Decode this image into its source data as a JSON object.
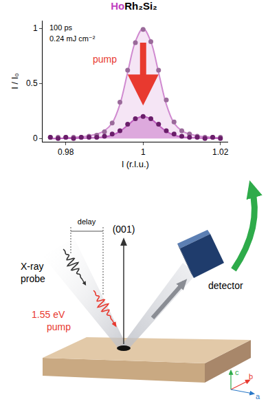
{
  "chart_data": {
    "type": "scatter",
    "title": [
      "Ho",
      "Rh₂Si₂"
    ],
    "x_label": "l (r.l.u.)",
    "y_label": "I / I₀",
    "annotations": [
      "100 ps",
      "0.24 mJ cm⁻²",
      "pump"
    ],
    "x": [
      0.976,
      0.978,
      0.98,
      0.982,
      0.984,
      0.986,
      0.988,
      0.99,
      0.992,
      0.994,
      0.996,
      0.998,
      1.0,
      1.002,
      1.004,
      1.006,
      1.008,
      1.01,
      1.012,
      1.014,
      1.016,
      1.018,
      1.02
    ],
    "series": [
      {
        "type": "line",
        "color": "#d08ad0",
        "values": [
          0,
          0,
          0.005,
          0.01,
          0.015,
          0.025,
          0.04,
          0.07,
          0.14,
          0.31,
          0.6,
          0.88,
          1.0,
          0.88,
          0.6,
          0.31,
          0.14,
          0.07,
          0.04,
          0.025,
          0.015,
          0.01,
          0.005
        ]
      },
      {
        "type": "line",
        "color": "#c060c0",
        "values": [
          0,
          0,
          0.001,
          0.002,
          0.003,
          0.005,
          0.008,
          0.014,
          0.03,
          0.065,
          0.12,
          0.177,
          0.2,
          0.177,
          0.12,
          0.065,
          0.03,
          0.014,
          0.008,
          0.005,
          0.003,
          0.002,
          0.001
        ]
      },
      {
        "type": "scatter",
        "marker": "circle",
        "color": "#9a6a9a",
        "values": [
          0.01,
          0.01,
          0.01,
          0.01,
          0.01,
          0.02,
          0.03,
          0.06,
          0.14,
          0.33,
          0.62,
          0.87,
          0.99,
          0.88,
          0.62,
          0.35,
          0.15,
          0.07,
          0.04,
          0.02,
          0.01,
          0.01,
          0.01
        ]
      },
      {
        "type": "scatter",
        "marker": "circle",
        "color": "#6a1e6a",
        "values": [
          0.01,
          0,
          0.01,
          0,
          0.01,
          0.01,
          0.01,
          0.02,
          0.04,
          0.07,
          0.13,
          0.18,
          0.2,
          0.18,
          0.13,
          0.07,
          0.04,
          0.02,
          0.01,
          0.01,
          0,
          0.01,
          0
        ]
      }
    ],
    "xlim": [
      0.974,
      1.022
    ],
    "xticks": [
      0.98,
      1,
      1.02
    ],
    "ylim": [
      -0.03,
      1.07
    ],
    "yticks": [
      0,
      0.5,
      1
    ],
    "grid": false
  },
  "diagram": {
    "probe_label": [
      "X-ray",
      "probe"
    ],
    "pump_label": [
      "1.55 eV",
      "pump"
    ],
    "delay": "delay",
    "direction": "(001)",
    "detector": "detector",
    "axes": {
      "a": "a",
      "b": "b",
      "c": "c"
    }
  }
}
